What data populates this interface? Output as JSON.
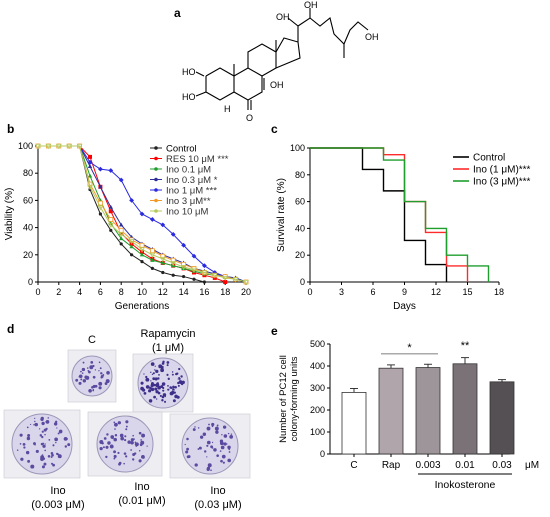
{
  "panels": {
    "a": {
      "label": "a",
      "atoms": [
        "HO",
        "HO",
        "OH",
        "OH",
        "OH",
        "OH",
        "H",
        "O"
      ]
    },
    "b": {
      "label": "b"
    },
    "c": {
      "label": "c"
    },
    "d": {
      "label": "d"
    },
    "e": {
      "label": "e"
    }
  },
  "chart_data": [
    {
      "id": "b",
      "type": "line",
      "xlabel": "Generations",
      "ylabel": "Viability (%)",
      "xlim": [
        0,
        20
      ],
      "ylim": [
        0,
        100
      ],
      "xticks": [
        0,
        2,
        4,
        6,
        8,
        10,
        12,
        14,
        16,
        18,
        20
      ],
      "yticks": [
        0,
        20,
        40,
        60,
        80,
        100
      ],
      "legend_position": "top-right",
      "colors": [
        "#222222",
        "#ff0000",
        "#1f9e2e",
        "#2f2f9a",
        "#2a2ae0",
        "#f29a28",
        "#b5c85a"
      ],
      "series": [
        {
          "name": "Control",
          "x": [
            0,
            1,
            2,
            3,
            4,
            5,
            6,
            7,
            8,
            9,
            10,
            11,
            12,
            13,
            14,
            15,
            16
          ],
          "y": [
            100,
            100,
            100,
            100,
            100,
            68,
            50,
            38,
            28,
            20,
            15,
            10,
            7,
            5,
            4,
            2,
            0
          ]
        },
        {
          "name": "RES 10 μM ***",
          "x": [
            0,
            1,
            2,
            3,
            4,
            5,
            6,
            7,
            8,
            9,
            10,
            11,
            12,
            13,
            14,
            15,
            16,
            17,
            18
          ],
          "y": [
            100,
            100,
            100,
            100,
            100,
            92,
            70,
            52,
            36,
            28,
            22,
            17,
            14,
            12,
            10,
            7,
            5,
            3,
            0
          ]
        },
        {
          "name": "Ino 0.1 μM",
          "x": [
            0,
            1,
            2,
            3,
            4,
            5,
            6,
            7,
            8,
            9,
            10,
            11,
            12,
            13,
            14,
            15,
            16,
            17,
            18,
            19,
            20
          ],
          "y": [
            100,
            100,
            100,
            100,
            100,
            78,
            60,
            43,
            32,
            26,
            20,
            16,
            14,
            12,
            10,
            8,
            6,
            5,
            4,
            3,
            0
          ]
        },
        {
          "name": "Ino 0.3 μM *",
          "x": [
            0,
            1,
            2,
            3,
            4,
            5,
            6,
            7,
            8,
            9,
            10,
            11,
            12,
            13,
            14,
            15,
            16,
            17,
            18,
            19,
            20
          ],
          "y": [
            100,
            100,
            100,
            100,
            100,
            85,
            70,
            55,
            42,
            33,
            28,
            24,
            20,
            17,
            14,
            10,
            8,
            6,
            4,
            3,
            0
          ]
        },
        {
          "name": "Ino 1 μM ***",
          "x": [
            0,
            1,
            2,
            3,
            4,
            5,
            6,
            7,
            8,
            9,
            10,
            11,
            12,
            13,
            14,
            15,
            16,
            17,
            18,
            19,
            20
          ],
          "y": [
            100,
            100,
            100,
            100,
            100,
            88,
            83,
            82,
            75,
            60,
            50,
            46,
            42,
            35,
            27,
            19,
            12,
            7,
            4,
            2,
            0
          ]
        },
        {
          "name": "Ino 3 μM**",
          "x": [
            0,
            1,
            2,
            3,
            4,
            5,
            6,
            7,
            8,
            9,
            10,
            11,
            12,
            13,
            14,
            15,
            16,
            17,
            18,
            19,
            20
          ],
          "y": [
            100,
            100,
            100,
            100,
            100,
            72,
            58,
            46,
            38,
            31,
            27,
            23,
            19,
            16,
            13,
            10,
            7,
            5,
            4,
            2,
            0
          ]
        },
        {
          "name": "Ino 10 μM",
          "x": [
            0,
            1,
            2,
            3,
            4,
            5,
            6,
            7,
            8,
            9,
            10,
            11,
            12,
            13,
            14,
            15,
            16,
            17,
            18,
            19,
            20
          ],
          "y": [
            100,
            100,
            100,
            100,
            100,
            70,
            55,
            42,
            35,
            30,
            24,
            20,
            17,
            14,
            11,
            9,
            7,
            5,
            3,
            2,
            0
          ]
        }
      ]
    },
    {
      "id": "c",
      "type": "line",
      "xlabel": "Days",
      "ylabel": "Survival rate (%)",
      "xlim": [
        0,
        18
      ],
      "ylim": [
        0,
        100
      ],
      "xticks": [
        0,
        3,
        6,
        9,
        12,
        15,
        18
      ],
      "yticks": [
        0,
        20,
        40,
        60,
        80,
        100
      ],
      "legend_position": "top-right",
      "colors": [
        "#000000",
        "#ff2a2a",
        "#1f9e2e"
      ],
      "series": [
        {
          "name": "Control",
          "x": [
            0,
            5,
            5,
            7,
            7,
            9,
            9,
            11,
            11,
            13,
            13
          ],
          "y": [
            100,
            100,
            84,
            84,
            68,
            68,
            31,
            31,
            13,
            13,
            0
          ]
        },
        {
          "name": "Ino (1 μM)***",
          "x": [
            0,
            7,
            7,
            9,
            9,
            11,
            11,
            13,
            13,
            15,
            15
          ],
          "y": [
            100,
            100,
            95,
            95,
            60,
            60,
            37,
            37,
            12,
            12,
            0
          ]
        },
        {
          "name": "Ino (3 μM)***",
          "x": [
            0,
            7,
            7,
            9,
            9,
            11,
            11,
            13,
            13,
            15,
            15,
            17,
            17
          ],
          "y": [
            100,
            100,
            91,
            91,
            60,
            60,
            40,
            40,
            20,
            20,
            12,
            12,
            0
          ]
        }
      ]
    },
    {
      "id": "e",
      "type": "bar",
      "ylabel": "Number of PC12 cell colony-forming units",
      "ylim": [
        0,
        500
      ],
      "yticks": [
        0,
        100,
        200,
        300,
        400,
        500
      ],
      "categories": [
        "C",
        "Rap",
        "0.003",
        "0.01",
        "0.03"
      ],
      "values": [
        280,
        390,
        393,
        410,
        328
      ],
      "errors": [
        18,
        15,
        15,
        28,
        10
      ],
      "colors": [
        "#ffffff",
        "#b0a5ab",
        "#9d959a",
        "#7a7277",
        "#555053"
      ],
      "significance": [
        {
          "text": "*",
          "over": [
            1,
            2
          ]
        },
        {
          "text": "**",
          "over": [
            3,
            3
          ]
        }
      ],
      "unit_label": "μM",
      "group_label": "Inokosterone"
    }
  ],
  "dishes": {
    "control": "C",
    "rapamycin": "Rapamycin\n(1 μM)",
    "ino_0003": "Ino\n(0.003 μM)",
    "ino_001": "Ino\n(0.01 μM)",
    "ino_003": "Ino\n(0.03 μM)"
  }
}
